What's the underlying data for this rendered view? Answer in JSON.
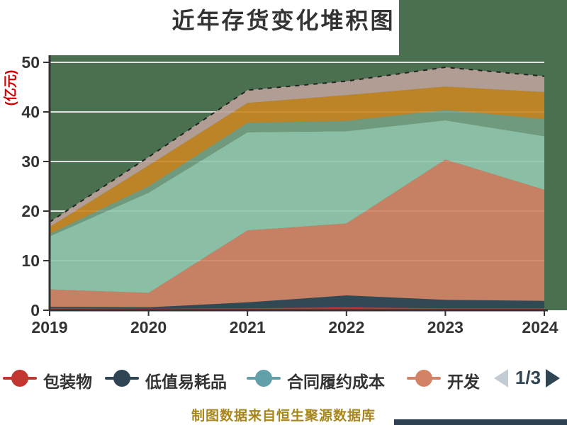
{
  "title": "近年存货变化堆积图",
  "source_note": "制图数据来自恒生聚源数据库",
  "colors": {
    "background": "#ffffff",
    "plot_background": "#4a7050",
    "grid_line": "#e2e2e2",
    "axis_line": "#333333",
    "title_text": "#333333",
    "axis_label_text": "#333333",
    "y_axis_name_text": "#d00000",
    "source_text": "#a8861e",
    "footer_bar": "#2e4154",
    "top_edge_dash_line": "#222222"
  },
  "chart_data": {
    "type": "area",
    "stacked": true,
    "title": "近年存货变化堆积图",
    "x": [
      "2019",
      "2020",
      "2021",
      "2022",
      "2023",
      "2024"
    ],
    "xlabel": "",
    "ylabel": "(亿元)",
    "ylim": [
      0,
      50
    ],
    "yticks": [
      0,
      10,
      20,
      30,
      40,
      50
    ],
    "grid": true,
    "legend_position": "bottom",
    "plot_bg_color": "#4a7050",
    "series": [
      {
        "name": "包装物",
        "color": "#c23531",
        "in_legend": true,
        "values": [
          0.4,
          0.3,
          0.4,
          0.6,
          0.4,
          0.4
        ]
      },
      {
        "name": "低值易耗品",
        "color": "#2f4554",
        "in_legend": true,
        "values": [
          0.3,
          0.3,
          1.2,
          2.4,
          1.7,
          1.5
        ]
      },
      {
        "name": "合同履约成本",
        "color": "#61a0a8",
        "in_legend": true,
        "values": [
          0,
          0,
          0,
          0,
          0,
          0
        ]
      },
      {
        "name": "开发",
        "color": "#d48265",
        "in_legend": true,
        "values": [
          3.5,
          2.9,
          14.5,
          14.5,
          28.3,
          22.4
        ]
      },
      {
        "name": "",
        "color": "#91c7ae",
        "in_legend": false,
        "values": [
          10.7,
          20.2,
          19.8,
          18.6,
          7.9,
          10.8
        ]
      },
      {
        "name": "",
        "color": "#749f83",
        "in_legend": false,
        "values": [
          0.5,
          1.3,
          1.9,
          2.1,
          2.1,
          3.5
        ]
      },
      {
        "name": "",
        "color": "#ca8622",
        "in_legend": false,
        "values": [
          1.4,
          4.2,
          4.0,
          5.2,
          4.7,
          5.4
        ]
      },
      {
        "name": "",
        "color": "#bda29a",
        "in_legend": false,
        "values": [
          1.0,
          1.7,
          2.6,
          2.8,
          3.9,
          3.2
        ]
      }
    ],
    "totals": [
      17.8,
      30.9,
      44.4,
      46.2,
      49.0,
      47.2
    ]
  },
  "legend": {
    "items": [
      {
        "label": "包装物",
        "color": "#c23531"
      },
      {
        "label": "低值易耗品",
        "color": "#2f4554"
      },
      {
        "label": "合同履约成本",
        "color": "#61a0a8"
      },
      {
        "label": "开发",
        "color": "#d48265"
      }
    ],
    "page_indicator": "1/3",
    "prev_arrow_color": "#c4ccd3",
    "next_arrow_color": "#2f4554"
  }
}
